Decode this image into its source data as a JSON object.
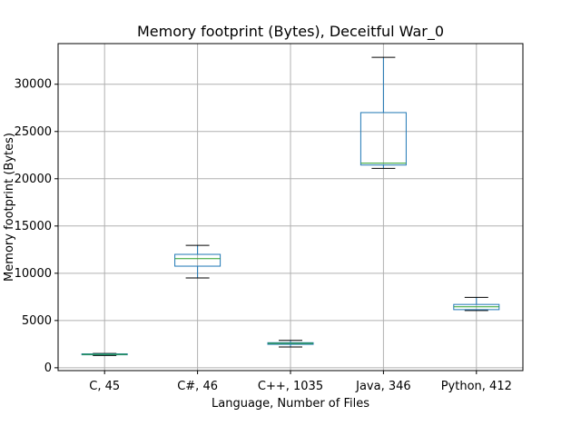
{
  "chart_data": {
    "type": "box",
    "title": "Memory footprint (Bytes), Deceitful War_0",
    "xlabel": "Language, Number of Files",
    "ylabel": "Memory footprint (Bytes)",
    "ylim": [
      -300,
      34300
    ],
    "yticks": [
      0,
      5000,
      10000,
      15000,
      20000,
      25000,
      30000
    ],
    "grid": true,
    "categories": [
      "C, 45",
      "C#, 46",
      "C++, 1035",
      "Java, 346",
      "Python, 412"
    ],
    "boxes": [
      {
        "whisker_low": 1300,
        "q1": 1380,
        "median": 1420,
        "q3": 1470,
        "whisker_high": 1520
      },
      {
        "whisker_low": 9500,
        "q1": 10750,
        "median": 11550,
        "q3": 12000,
        "whisker_high": 12950
      },
      {
        "whisker_low": 2200,
        "q1": 2480,
        "median": 2580,
        "q3": 2650,
        "whisker_high": 2900
      },
      {
        "whisker_low": 21100,
        "q1": 21450,
        "median": 21650,
        "q3": 27000,
        "whisker_high": 32850
      },
      {
        "whisker_low": 6050,
        "q1": 6150,
        "median": 6450,
        "q3": 6700,
        "whisker_high": 7450
      }
    ],
    "colors": {
      "box": "#1f77b4",
      "median": "#2ca02c",
      "whisker_cap": "#000000",
      "grid": "#b0b0b0"
    }
  }
}
